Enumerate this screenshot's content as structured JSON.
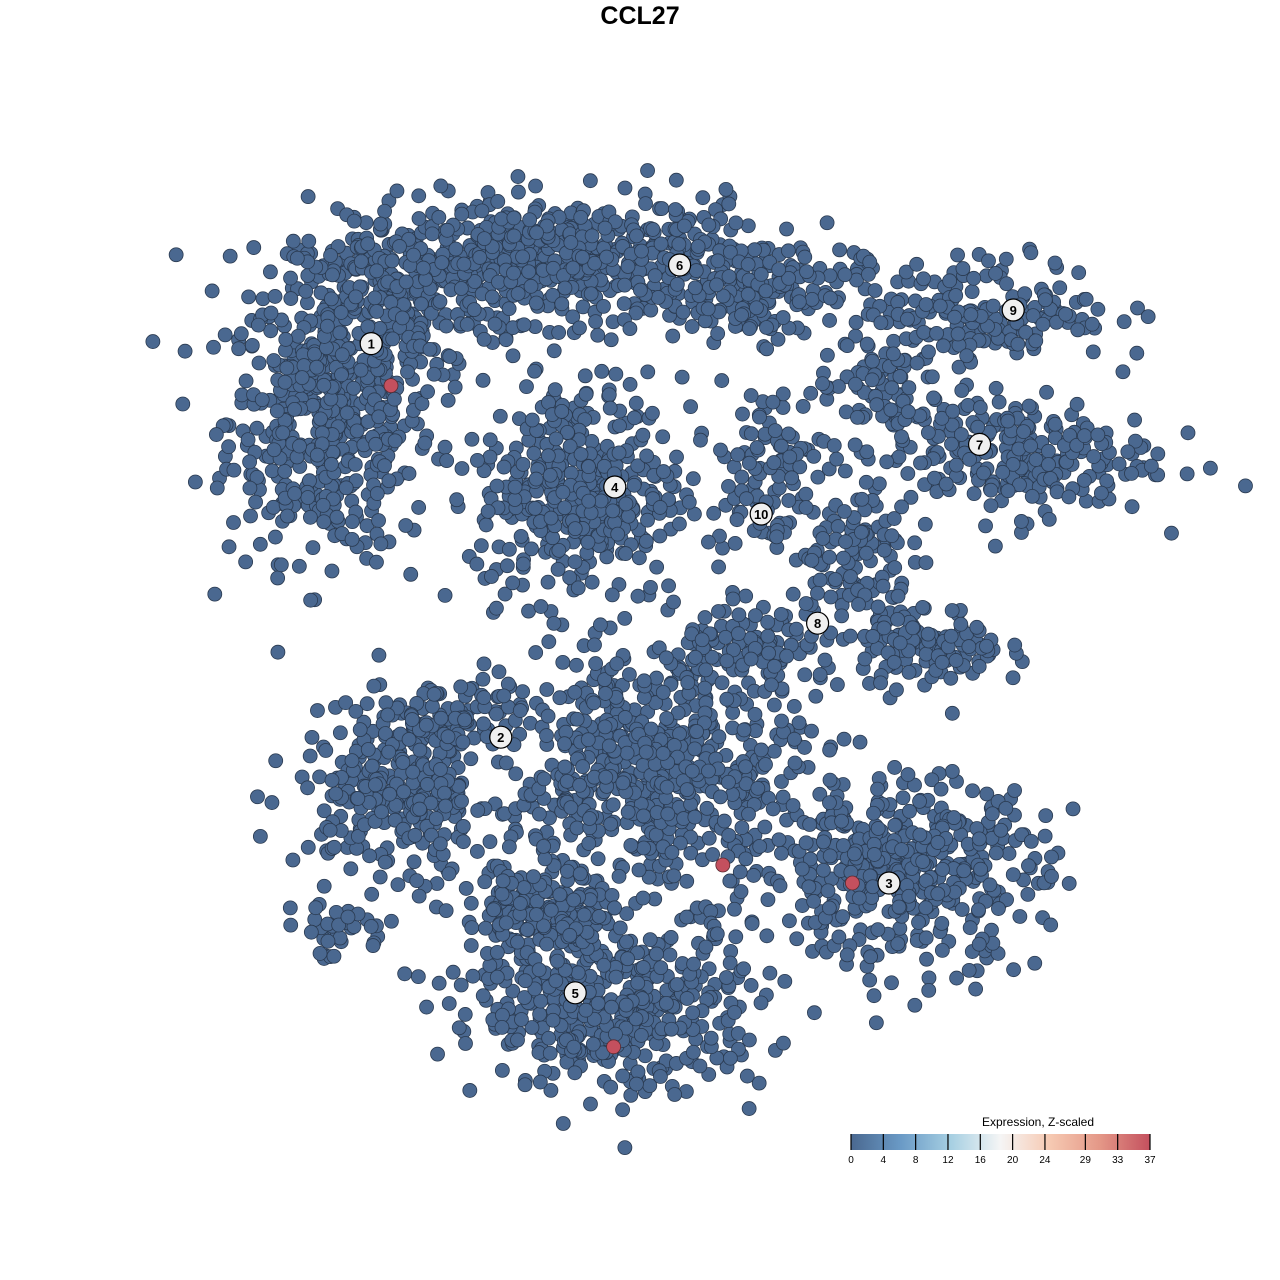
{
  "chart_data": {
    "type": "scatter",
    "title": "CCL27",
    "xlabel": "",
    "ylabel": "",
    "xlim": [
      -40,
      42
    ],
    "ylim": [
      -38,
      38
    ],
    "grid": false,
    "point_color": "#4a6890",
    "point_stroke": "#2a3a50",
    "clusters": [
      {
        "label": "1",
        "label_pos": [
          -22.4,
          24.7
        ],
        "blobs": [
          {
            "center": [
              -25.8,
              18.3
            ],
            "spread": [
              5,
              6.7
            ],
            "n": 500
          },
          {
            "center": [
              -20.8,
              28.3
            ],
            "spread": [
              6,
              4
            ],
            "n": 250
          }
        ]
      },
      {
        "label": "6",
        "label_pos": [
          3.3,
          31.25
        ],
        "blobs": [
          {
            "center": [
              -6.7,
              31.7
            ],
            "spread": [
              10,
              3
            ],
            "n": 600
          },
          {
            "center": [
              10,
              29.2
            ],
            "spread": [
              5,
              2.5
            ],
            "n": 150
          }
        ]
      },
      {
        "label": "4",
        "label_pos": [
          -2.1,
          12.75
        ],
        "blobs": [
          {
            "center": [
              -5,
              12.5
            ],
            "spread": [
              5,
              5.5
            ],
            "n": 400
          }
        ]
      },
      {
        "label": "10",
        "label_pos": [
          10.1,
          10.5
        ],
        "blobs": [
          {
            "center": [
              10.4,
              14.2
            ],
            "spread": [
              3,
              4
            ],
            "n": 100
          }
        ]
      },
      {
        "label": "7",
        "label_pos": [
          28.3,
          16.3
        ],
        "blobs": [
          {
            "center": [
              30.8,
              15.4
            ],
            "spread": [
              7,
              3
            ],
            "n": 250
          },
          {
            "center": [
              20,
              20.8
            ],
            "spread": [
              3,
              2.5
            ],
            "n": 80
          }
        ]
      },
      {
        "label": "9",
        "label_pos": [
          31.1,
          27.5
        ],
        "blobs": [
          {
            "center": [
              29.2,
              27.5
            ],
            "spread": [
              6,
              2.5
            ],
            "n": 180
          }
        ]
      },
      {
        "label": "8",
        "label_pos": [
          14.8,
          1.4
        ],
        "blobs": [
          {
            "center": [
              17.5,
              6.7
            ],
            "spread": [
              3,
              4
            ],
            "n": 120
          },
          {
            "center": [
              24.2,
              -0.8
            ],
            "spread": [
              3.5,
              2
            ],
            "n": 120
          },
          {
            "center": [
              10,
              -0.8
            ],
            "spread": [
              4,
              2
            ],
            "n": 100
          }
        ]
      },
      {
        "label": "2",
        "label_pos": [
          -11.6,
          -8.1
        ],
        "blobs": [
          {
            "center": [
              -20,
              -12.5
            ],
            "spread": [
              5,
              4
            ],
            "n": 300
          },
          {
            "center": [
              -15.8,
              -6.7
            ],
            "spread": [
              4,
              2
            ],
            "n": 80
          },
          {
            "center": [
              -25,
              -24.2
            ],
            "spread": [
              3,
              1.5
            ],
            "n": 40
          }
        ]
      },
      {
        "label": "",
        "label_pos": null,
        "blobs": [
          {
            "center": [
              1.7,
              -10.8
            ],
            "spread": [
              7,
              6
            ],
            "n": 600
          }
        ]
      },
      {
        "label": "3",
        "label_pos": [
          20.75,
          -20.25
        ],
        "blobs": [
          {
            "center": [
              21.7,
              -19.2
            ],
            "spread": [
              7,
              4.5
            ],
            "n": 450
          }
        ]
      },
      {
        "label": "5",
        "label_pos": [
          -5.4,
          -29.4
        ],
        "blobs": [
          {
            "center": [
              -1.7,
              -30.8
            ],
            "spread": [
              7,
              4
            ],
            "n": 450
          },
          {
            "center": [
              -8.3,
              -23.3
            ],
            "spread": [
              4,
              3
            ],
            "n": 200
          }
        ]
      }
    ],
    "highlighted_points": [
      {
        "x": -20.75,
        "y": 21.2,
        "expression": 37
      },
      {
        "x": 6.9,
        "y": -18.75,
        "expression": 37
      },
      {
        "x": 17.7,
        "y": -20.25,
        "expression": 37
      },
      {
        "x": -2.2,
        "y": -33.9,
        "expression": 37
      }
    ],
    "colorbar": {
      "title": "Expression, Z-scaled",
      "ticks": [
        0,
        4,
        8,
        12,
        16,
        20,
        24,
        29,
        33,
        37
      ],
      "range": [
        0,
        37
      ],
      "colors": [
        "#4a6890",
        "#6a9ac6",
        "#a6cfe2",
        "#f5f5f5",
        "#f6c9b2",
        "#e49787",
        "#c4505e"
      ],
      "placement": "bottom-right"
    }
  }
}
